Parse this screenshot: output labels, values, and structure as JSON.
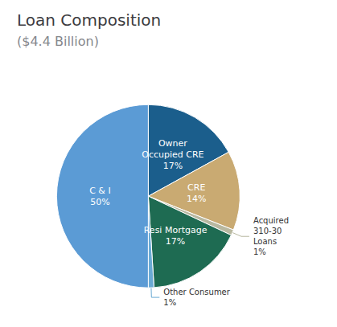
{
  "chart_data": {
    "type": "pie",
    "title": "Loan Composition",
    "subtitle": "($4.4 Billion)",
    "categories": [
      "Owner\nOccupied CRE",
      "CRE",
      "Acquired\n310-30\nLoans",
      "Resi Mortgage",
      "Other Consumer",
      "C & I"
    ],
    "values": [
      17,
      14,
      1,
      17,
      1,
      50
    ],
    "value_labels": [
      "17%",
      "14%",
      "1%",
      "17%",
      "1%",
      "50%"
    ],
    "colors": [
      "#1b5e8c",
      "#c9aa72",
      "#b8b8a0",
      "#1e6b52",
      "#6aaad4",
      "#5b9bd5"
    ],
    "data_labels": true
  }
}
